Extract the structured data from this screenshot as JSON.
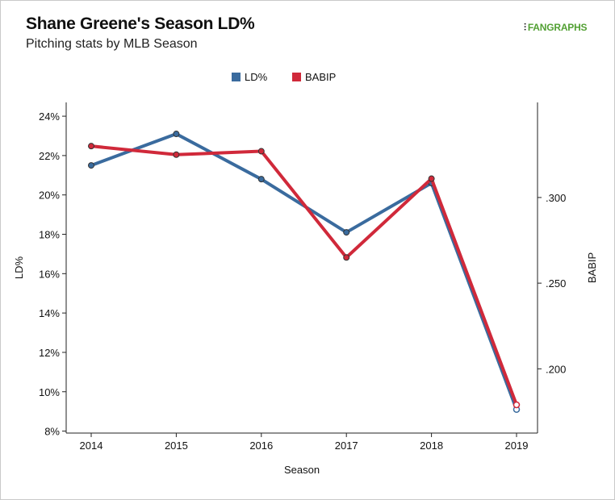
{
  "header": {
    "title": "Shane Greene's Season LD%",
    "subtitle": "Pitching stats by MLB Season",
    "logo_text": "FANGRAPHS"
  },
  "chart_data": {
    "type": "line",
    "title": "Shane Greene's Season LD%",
    "subtitle": "Pitching stats by MLB Season",
    "xlabel": "Season",
    "ylabel_left": "LD%",
    "ylabel_right": "BABIP",
    "x": [
      "2014",
      "2015",
      "2016",
      "2017",
      "2018",
      "2019"
    ],
    "ylim_left": [
      7.9,
      24.7
    ],
    "ylim_right": [
      0.1625,
      0.3555
    ],
    "yticks_left": [
      "8%",
      "10%",
      "12%",
      "14%",
      "16%",
      "18%",
      "20%",
      "22%",
      "24%"
    ],
    "yticks_left_values": [
      8,
      10,
      12,
      14,
      16,
      18,
      20,
      22,
      24
    ],
    "yticks_right": [
      ".200",
      ".250",
      ".300"
    ],
    "yticks_right_values": [
      0.2,
      0.25,
      0.3
    ],
    "grid": false,
    "legend_position": "top-center",
    "series": [
      {
        "name": "LD%",
        "axis": "left",
        "color": "#3a6b9e",
        "values": [
          21.5,
          23.1,
          20.8,
          18.1,
          20.6,
          9.1
        ]
      },
      {
        "name": "BABIP",
        "axis": "right",
        "color": "#d0293a",
        "values": [
          0.33,
          0.325,
          0.327,
          0.265,
          0.311,
          0.179
        ]
      }
    ]
  }
}
